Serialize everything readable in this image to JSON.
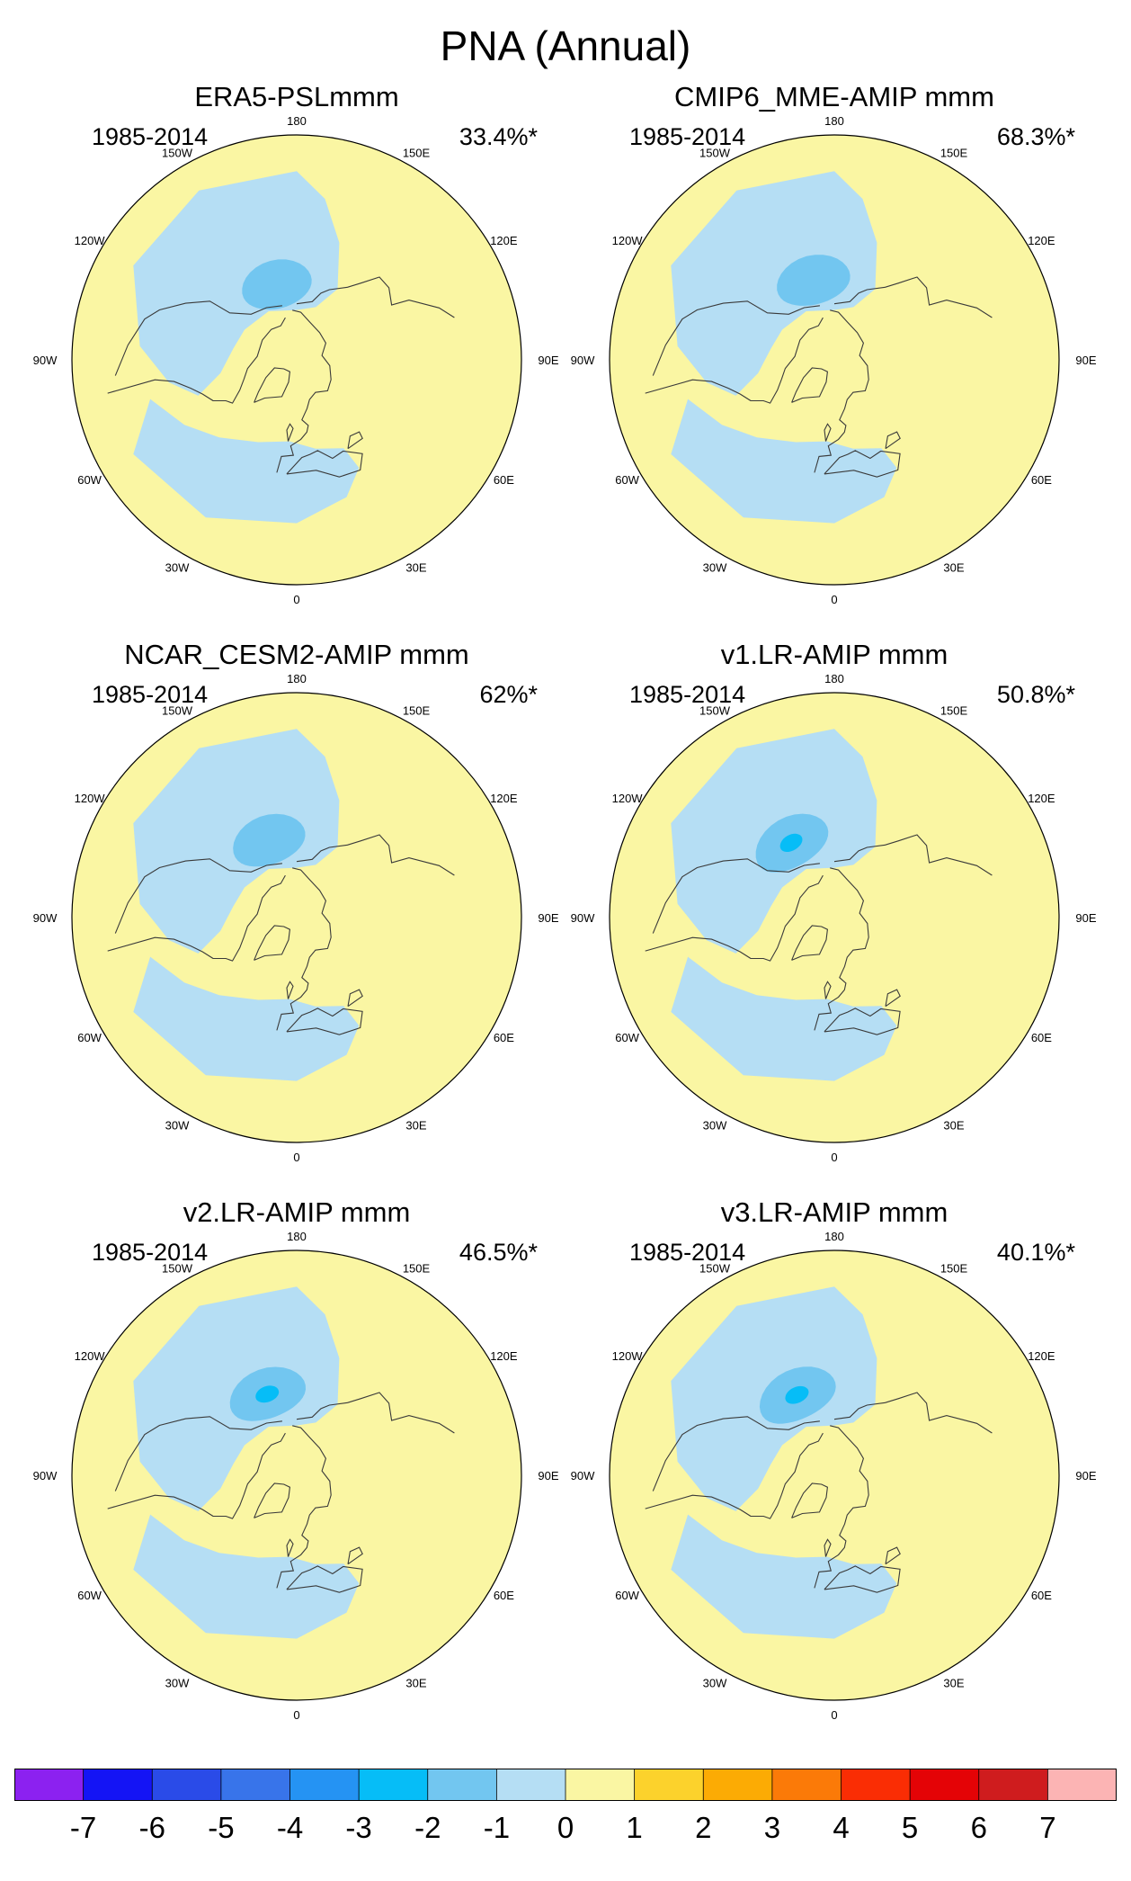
{
  "title": "PNA (Annual)",
  "chart_data": {
    "type": "heatmap",
    "projection": "north polar stereographic",
    "panels": [
      {
        "title": "ERA5-PSLmmm",
        "period": "1985-2014",
        "variance": "33.4%*",
        "negative_centers": [
          {
            "lon": -165,
            "lat": 52,
            "min_level": -2
          }
        ],
        "lon_labels": [
          "180",
          "150E",
          "120E",
          "90E",
          "60E",
          "30E",
          "0",
          "30W",
          "60W",
          "90W",
          "120W",
          "150W"
        ]
      },
      {
        "title": "CMIP6_MME-AMIP  mmm",
        "period": "1985-2014",
        "variance": "68.3%*",
        "negative_centers": [
          {
            "lon": -165,
            "lat": 50,
            "min_level": -2
          }
        ],
        "lon_labels": [
          "180",
          "150E",
          "120E",
          "90E",
          "60E",
          "30E",
          "0",
          "30W",
          "60W",
          "90W",
          "120W",
          "150W"
        ]
      },
      {
        "title": "NCAR_CESM2-AMIP  mmm",
        "period": "1985-2014",
        "variance": "62%*",
        "negative_centers": [
          {
            "lon": -160,
            "lat": 50,
            "min_level": -2
          }
        ],
        "lon_labels": [
          "180",
          "150E",
          "120E",
          "90E",
          "60E",
          "30E",
          "0",
          "30W",
          "60W",
          "90W",
          "120W",
          "150W"
        ]
      },
      {
        "title": "v1.LR-AMIP  mmm",
        "period": "1985-2014",
        "variance": "50.8%*",
        "negative_centers": [
          {
            "lon": -150,
            "lat": 48,
            "min_level": -3
          }
        ],
        "lon_labels": [
          "180",
          "150E",
          "120E",
          "90E",
          "60E",
          "30E",
          "0",
          "30W",
          "60W",
          "90W",
          "120W",
          "150W"
        ]
      },
      {
        "title": "v2.LR-AMIP  mmm",
        "period": "1985-2014",
        "variance": "46.5%*",
        "negative_centers": [
          {
            "lon": -160,
            "lat": 48,
            "min_level": -3
          }
        ],
        "lon_labels": [
          "180",
          "150E",
          "120E",
          "90E",
          "60E",
          "30E",
          "0",
          "30W",
          "60W",
          "90W",
          "120W",
          "150W"
        ]
      },
      {
        "title": "v3.LR-AMIP  mmm",
        "period": "1985-2014",
        "variance": "40.1%*",
        "negative_centers": [
          {
            "lon": -155,
            "lat": 47,
            "min_level": -3
          }
        ],
        "lon_labels": [
          "180",
          "150E",
          "120E",
          "90E",
          "60E",
          "30E",
          "0",
          "30W",
          "60W",
          "90W",
          "120W",
          "150W"
        ]
      }
    ],
    "colorbar": {
      "ticks": [
        "-7",
        "-6",
        "-5",
        "-4",
        "-3",
        "-2",
        "-1",
        "0",
        "1",
        "2",
        "3",
        "4",
        "5",
        "6",
        "7"
      ],
      "colors": [
        "#8c21f0",
        "#1414f5",
        "#2a4be8",
        "#3874ea",
        "#2593f3",
        "#06bdf7",
        "#72c6f0",
        "#b5def4",
        "#faf6a3",
        "#fcd22c",
        "#fcab04",
        "#fb7a08",
        "#fa2d04",
        "#e40306",
        "#cf1c1e",
        "#fcb4b4"
      ]
    }
  },
  "colors": {
    "neg1": "#b5def4",
    "neg2": "#72c6f0",
    "neg3": "#06bdf7",
    "pos1": "#faf6a3",
    "coast": "#3a3a3a"
  }
}
